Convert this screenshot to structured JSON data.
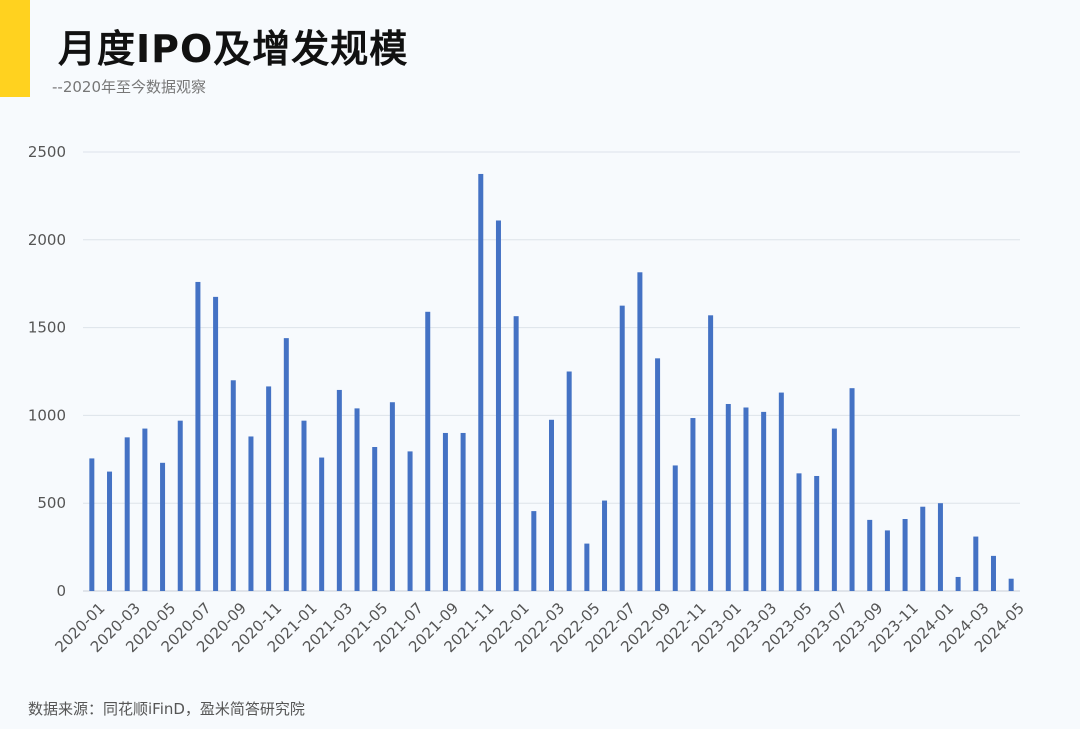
{
  "header": {
    "title": "月度IPO及增发规模",
    "subtitle": "--2020年至今数据观察"
  },
  "footer": {
    "source": "数据来源：同花顺iFinD，盈米简答研究院"
  },
  "colors": {
    "accent": "#ffd21f",
    "bar": "#4472c4",
    "grid": "#dde3ea"
  },
  "chart_data": {
    "type": "bar",
    "title": "月度IPO及增发规模",
    "subtitle": "--2020年至今数据观察",
    "xlabel": "",
    "ylabel": "",
    "ylim": [
      0,
      2500
    ],
    "yticks": [
      0,
      500,
      1000,
      1500,
      2000,
      2500
    ],
    "grid": true,
    "legend": "none",
    "categories": [
      "2020-01",
      "2020-02",
      "2020-03",
      "2020-04",
      "2020-05",
      "2020-06",
      "2020-07",
      "2020-08",
      "2020-09",
      "2020-10",
      "2020-11",
      "2020-12",
      "2021-01",
      "2021-02",
      "2021-03",
      "2021-04",
      "2021-05",
      "2021-06",
      "2021-07",
      "2021-08",
      "2021-09",
      "2021-10",
      "2021-11",
      "2021-12",
      "2022-01",
      "2022-02",
      "2022-03",
      "2022-04",
      "2022-05",
      "2022-06",
      "2022-07",
      "2022-08",
      "2022-09",
      "2022-10",
      "2022-11",
      "2022-12",
      "2023-01",
      "2023-02",
      "2023-03",
      "2023-04",
      "2023-05",
      "2023-06",
      "2023-07",
      "2023-08",
      "2023-09",
      "2023-10",
      "2023-11",
      "2023-12",
      "2024-01",
      "2024-02",
      "2024-03",
      "2024-04",
      "2024-05"
    ],
    "xtick_labels": [
      "2020-01",
      "2020-03",
      "2020-05",
      "2020-07",
      "2020-09",
      "2020-11",
      "2021-01",
      "2021-03",
      "2021-05",
      "2021-07",
      "2021-09",
      "2021-11",
      "2022-01",
      "2022-03",
      "2022-05",
      "2022-07",
      "2022-09",
      "2022-11",
      "2023-01",
      "2023-03",
      "2023-05",
      "2023-07",
      "2023-09",
      "2023-11",
      "2024-01",
      "2024-03",
      "2024-05"
    ],
    "values": [
      755,
      680,
      875,
      925,
      730,
      970,
      1760,
      1675,
      1200,
      880,
      1165,
      1440,
      970,
      760,
      1145,
      1040,
      820,
      1075,
      795,
      1590,
      900,
      900,
      2375,
      2110,
      1565,
      455,
      975,
      1250,
      270,
      515,
      1625,
      1815,
      1325,
      715,
      985,
      1570,
      1065,
      1045,
      1020,
      1130,
      670,
      655,
      925,
      1155,
      405,
      345,
      410,
      480,
      500,
      80,
      310,
      200,
      70
    ]
  }
}
